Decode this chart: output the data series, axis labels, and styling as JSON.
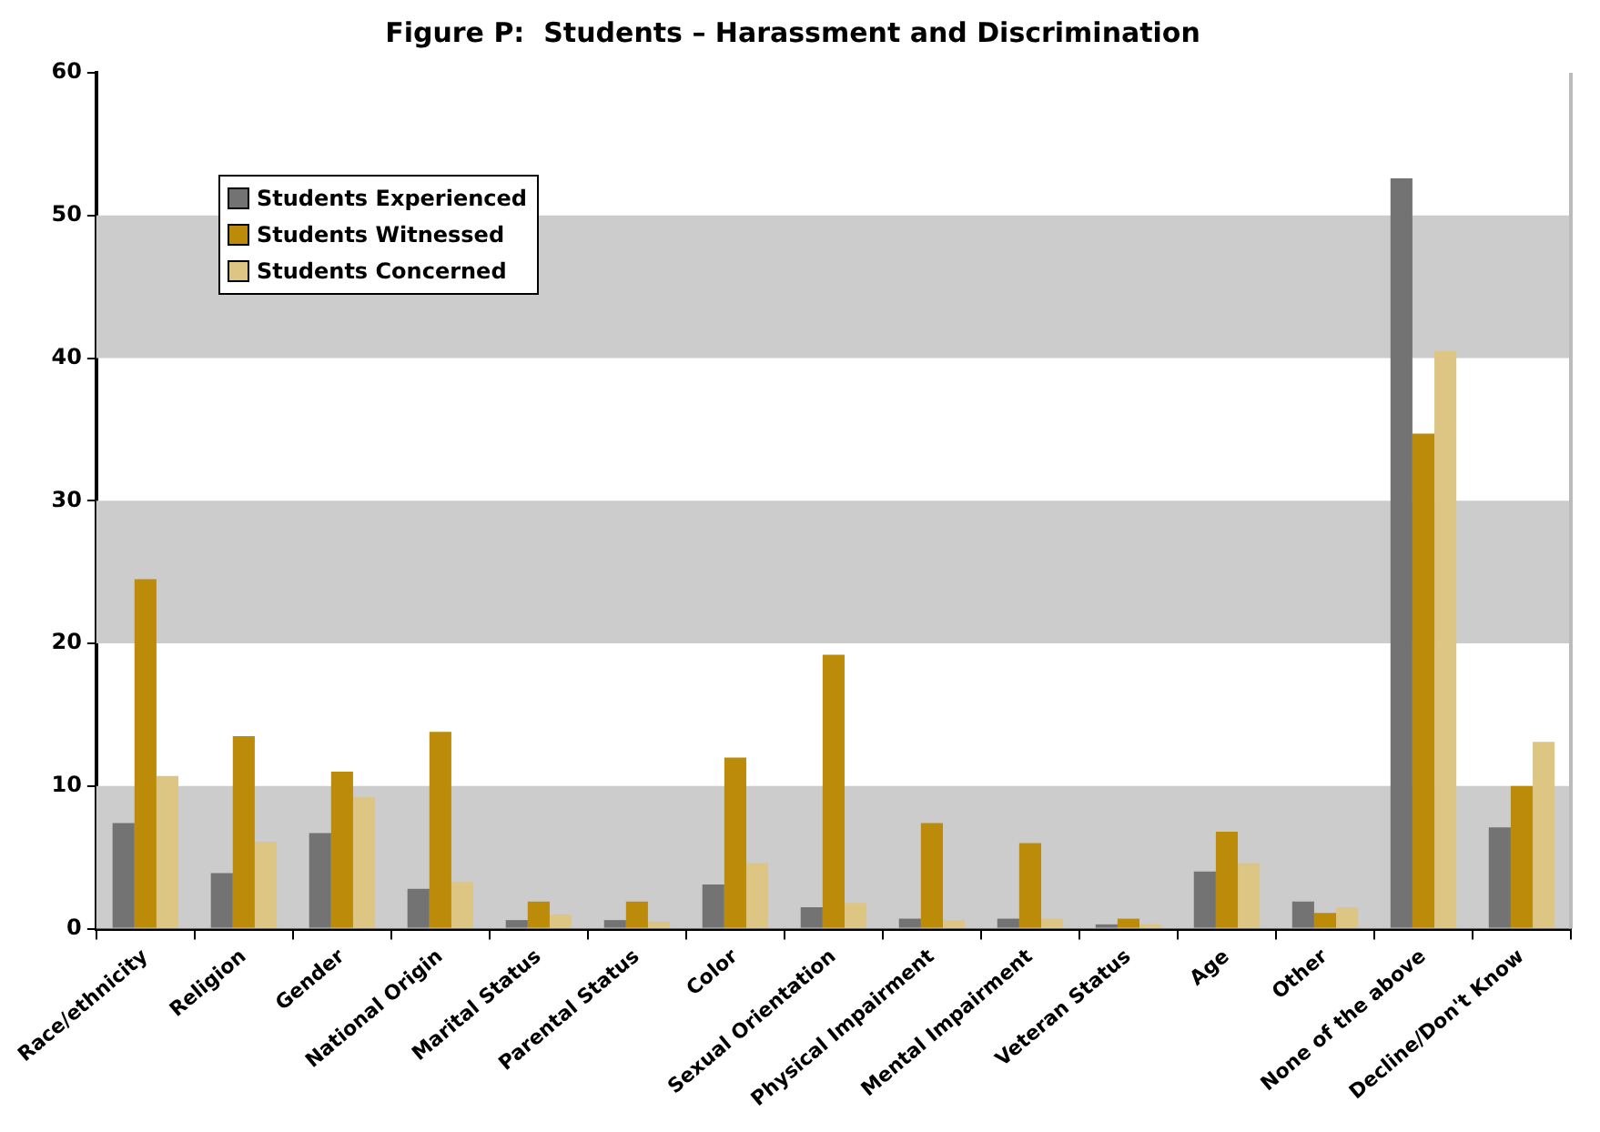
{
  "chart_data": {
    "type": "bar",
    "title": "Figure P:  Students – Harassment and Discrimination",
    "categories": [
      "Race/ethnicity",
      "Religion",
      "Gender",
      "National Origin",
      "Marital Status",
      "Parental Status",
      "Color",
      "Sexual Orientation",
      "Physical Impairment",
      "Mental Impairment",
      "Veteran Status",
      "Age",
      "Other",
      "None of the above",
      "Decline/Don't Know"
    ],
    "series": [
      {
        "name": "Students Experienced",
        "color": "#737373",
        "values": [
          7.4,
          3.9,
          6.7,
          2.8,
          0.6,
          0.6,
          3.1,
          1.5,
          0.7,
          0.7,
          0.3,
          4.0,
          1.9,
          52.6,
          7.1
        ]
      },
      {
        "name": "Students Witnessed",
        "color": "#bb8b09",
        "values": [
          24.5,
          13.5,
          11.0,
          13.8,
          1.9,
          1.9,
          12.0,
          19.2,
          7.4,
          6.0,
          0.7,
          6.8,
          1.1,
          34.7,
          10.0
        ]
      },
      {
        "name": "Students Concerned",
        "color": "#ddc584",
        "values": [
          10.7,
          6.1,
          9.2,
          3.3,
          1.0,
          0.5,
          4.6,
          1.8,
          0.6,
          0.7,
          0.3,
          4.6,
          1.5,
          40.5,
          13.1
        ]
      }
    ],
    "ylim": [
      0,
      60
    ],
    "yticks": [
      0,
      10,
      20,
      30,
      40,
      50,
      60
    ],
    "bands": [
      {
        "axis": "y",
        "from": 0,
        "to": 10,
        "color": "#cccccc"
      },
      {
        "axis": "y",
        "from": 20,
        "to": 30,
        "color": "#cccccc"
      },
      {
        "axis": "y",
        "from": 40,
        "to": 50,
        "color": "#cccccc"
      }
    ],
    "grid": false,
    "legend": "top left"
  }
}
